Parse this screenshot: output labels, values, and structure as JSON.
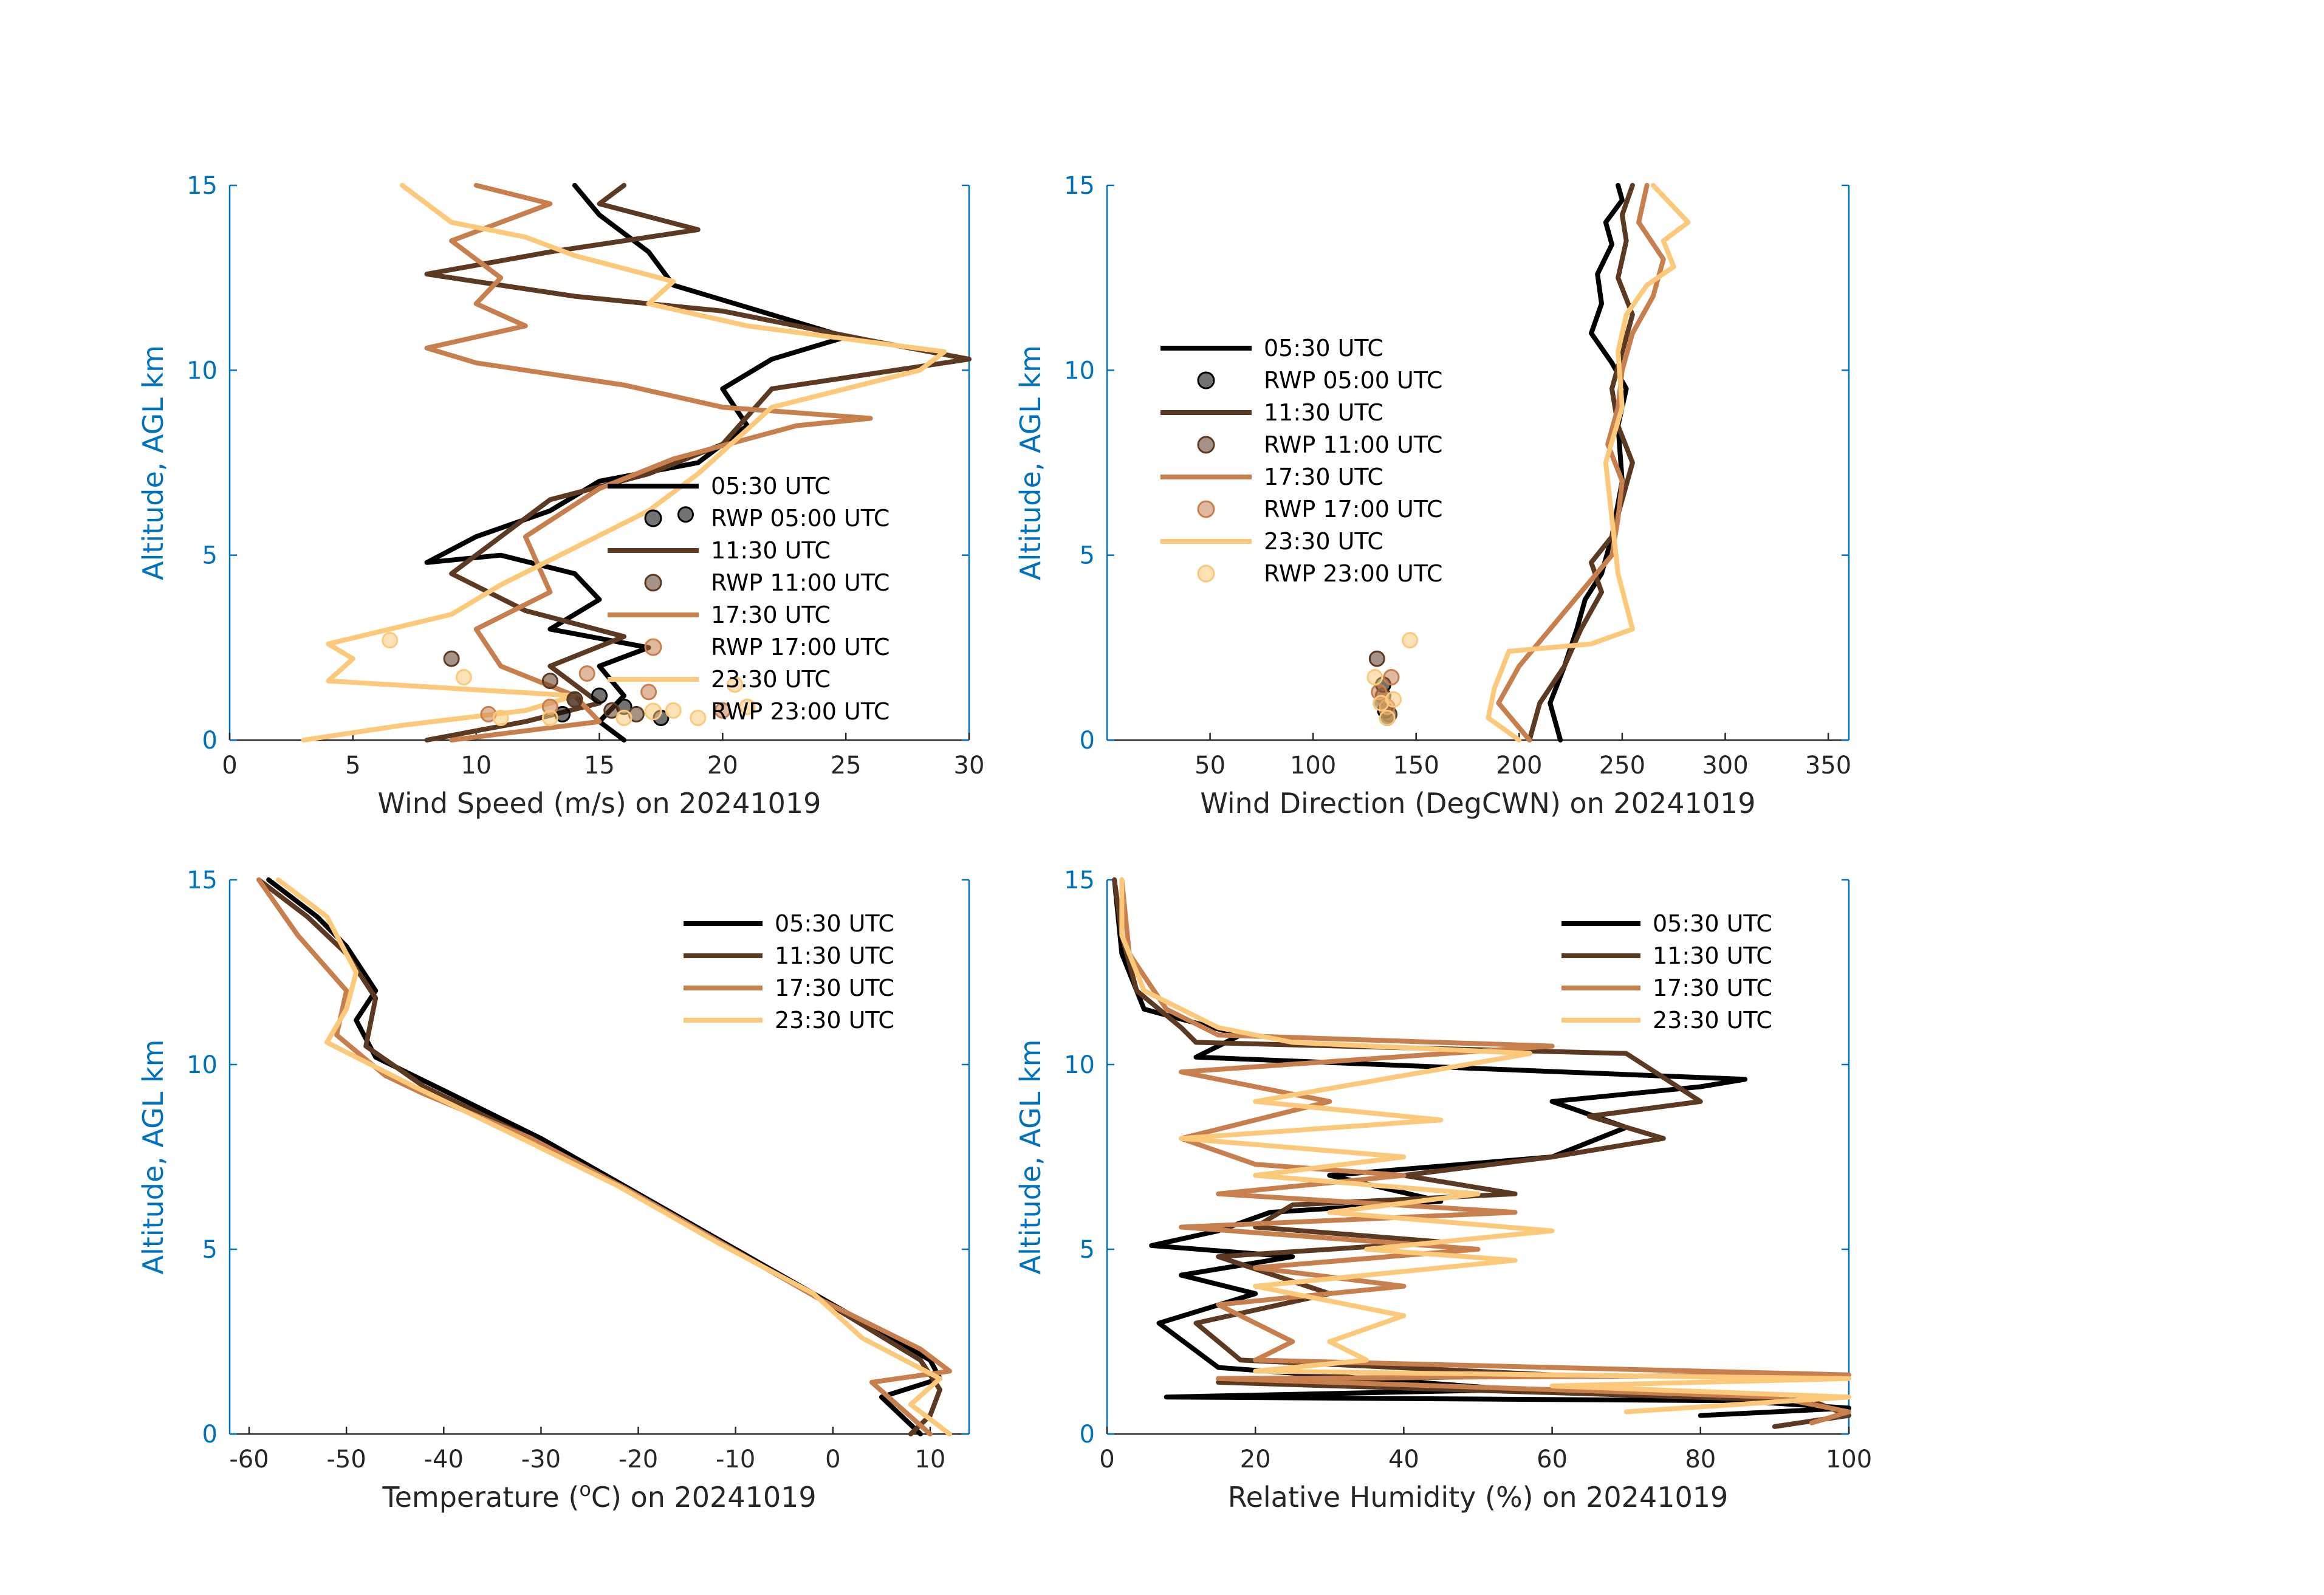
{
  "colors": {
    "axis_blue": "#0072BD",
    "axis_dark": "#262626",
    "t0530": "#000000",
    "t1130": "#5C3A21",
    "t1730": "#C87F4E",
    "t2330": "#FCC97B"
  },
  "times": [
    "05:30 UTC",
    "11:30 UTC",
    "17:30 UTC",
    "23:30 UTC"
  ],
  "rwp_labels": [
    "RWP 05:00 UTC",
    "RWP 11:00 UTC",
    "RWP 17:00 UTC",
    "RWP 23:00 UTC"
  ],
  "chart_data": [
    {
      "id": "wind_speed",
      "type": "line",
      "xlabel": "Wind Speed (m/s) on 20241019",
      "ylabel": "Altitude, AGL km",
      "xlim": [
        0,
        30
      ],
      "ylim": [
        0,
        15
      ],
      "xticks": [
        0,
        5,
        10,
        15,
        20,
        25,
        30
      ],
      "yticks": [
        0,
        5,
        10,
        15
      ],
      "legend": "bottom-right, inside, with RWP markers",
      "series": [
        {
          "name": "05:30 UTC",
          "x": [
            16,
            15,
            16,
            15,
            17,
            13,
            15,
            14,
            11,
            8,
            10,
            13,
            15,
            19,
            21,
            20,
            22,
            25,
            22,
            18,
            17,
            15,
            14
          ],
          "y": [
            0,
            0.5,
            1.2,
            2,
            2.5,
            3,
            3.8,
            4.5,
            5.0,
            4.8,
            5.5,
            6.2,
            7,
            7.5,
            8.5,
            9.5,
            10.3,
            10.9,
            11.5,
            12.3,
            13.2,
            14.2,
            15
          ]
        },
        {
          "name": "11:30 UTC",
          "x": [
            8,
            12,
            15,
            13,
            16,
            12,
            9,
            11,
            13,
            17,
            20,
            22,
            30,
            26,
            20,
            14,
            8,
            13,
            19,
            15,
            16
          ],
          "y": [
            0,
            0.5,
            1.0,
            2,
            2.8,
            3.5,
            4.5,
            5.5,
            6.5,
            7.2,
            8.0,
            9.5,
            10.3,
            10.8,
            11.6,
            12.0,
            12.6,
            13.2,
            13.8,
            14.5,
            15
          ]
        },
        {
          "name": "17:30 UTC",
          "x": [
            9,
            15,
            14,
            11,
            10,
            13,
            12,
            15,
            18,
            23,
            26,
            20,
            16,
            10,
            8,
            12,
            10,
            11,
            9,
            13,
            10
          ],
          "y": [
            0,
            0.5,
            1.2,
            2.0,
            3.0,
            4.0,
            5.5,
            6.8,
            7.6,
            8.5,
            8.7,
            9.0,
            9.6,
            10.2,
            10.6,
            11.2,
            11.8,
            12.5,
            13.5,
            14.5,
            15
          ]
        },
        {
          "name": "23:30 UTC",
          "x": [
            3,
            7,
            12,
            14,
            4,
            5,
            4,
            9,
            11,
            14,
            17,
            19,
            22,
            28,
            29,
            21,
            17,
            18,
            14,
            12,
            9,
            8,
            7
          ],
          "y": [
            0,
            0.4,
            0.8,
            1.2,
            1.6,
            2.2,
            2.6,
            3.4,
            4.2,
            5.2,
            6.2,
            7.2,
            9.0,
            10.0,
            10.5,
            11.2,
            11.8,
            12.4,
            13.1,
            13.6,
            14.0,
            14.5,
            15
          ]
        }
      ],
      "rwp": [
        {
          "name": "RWP 05:00 UTC",
          "x": [
            18.5,
            15,
            16,
            17.5,
            13.5,
            14
          ],
          "y": [
            6.1,
            1.2,
            0.9,
            0.6,
            0.7,
            1.1
          ]
        },
        {
          "name": "RWP 11:00 UTC",
          "x": [
            9,
            14,
            15.5,
            16.5,
            13
          ],
          "y": [
            2.2,
            1.1,
            0.8,
            0.7,
            1.6
          ]
        },
        {
          "name": "RWP 17:00 UTC",
          "x": [
            13,
            17,
            20,
            10.5,
            14.5
          ],
          "y": [
            0.9,
            1.3,
            0.8,
            0.7,
            1.8
          ]
        },
        {
          "name": "RWP 23:00 UTC",
          "x": [
            6.5,
            9.5,
            11,
            13,
            16,
            18,
            19,
            20.5,
            21
          ],
          "y": [
            2.7,
            1.7,
            0.6,
            0.6,
            0.6,
            0.8,
            0.6,
            1.5,
            0.9
          ]
        }
      ]
    },
    {
      "id": "wind_direction",
      "type": "line",
      "xlabel": "Wind Direction (DegCWN) on 20241019",
      "ylabel": "Altitude, AGL km",
      "xlim": [
        0,
        360
      ],
      "ylim": [
        0,
        15
      ],
      "xticks": [
        50,
        100,
        150,
        200,
        250,
        300,
        350
      ],
      "yticks": [
        0,
        5,
        10,
        15
      ],
      "legend": "upper-left, inside, with RWP markers",
      "series": [
        {
          "name": "05:30 UTC",
          "x": [
            220,
            215,
            222,
            228,
            232,
            240,
            245,
            250,
            248,
            252,
            245,
            235,
            240,
            238,
            245,
            242,
            250,
            248
          ],
          "y": [
            0,
            1,
            2,
            3,
            3.8,
            4.5,
            5.5,
            7.0,
            8.5,
            9.5,
            10.2,
            11.0,
            11.8,
            12.6,
            13.4,
            14.0,
            14.6,
            15
          ]
        },
        {
          "name": "11:30 UTC",
          "x": [
            205,
            210,
            222,
            230,
            240,
            235,
            245,
            250,
            255,
            248,
            245,
            250,
            255,
            248,
            252,
            250,
            255
          ],
          "y": [
            0,
            1,
            2,
            3,
            4,
            4.8,
            5.5,
            6.5,
            7.5,
            8.5,
            9.5,
            10.5,
            11.5,
            12.5,
            13.5,
            14.2,
            15
          ]
        },
        {
          "name": "17:30 UTC",
          "x": [
            205,
            190,
            200,
            215,
            230,
            245,
            248,
            250,
            243,
            248,
            250,
            255,
            265,
            270,
            258,
            262
          ],
          "y": [
            0,
            1,
            2,
            3,
            4,
            5,
            6,
            7,
            8,
            9,
            10,
            11,
            12,
            13,
            14,
            15
          ]
        },
        {
          "name": "23:30 UTC",
          "x": [
            200,
            185,
            188,
            195,
            235,
            255,
            248,
            245,
            242,
            250,
            248,
            252,
            262,
            275,
            270,
            282,
            265
          ],
          "y": [
            0,
            0.6,
            1.4,
            2.4,
            2.6,
            3.0,
            4.5,
            6.0,
            7.5,
            9.0,
            10.5,
            11.5,
            12.3,
            12.8,
            13.5,
            14.0,
            15
          ]
        }
      ],
      "rwp": [
        {
          "name": "RWP 05:00 UTC",
          "x": [
            133,
            135,
            134,
            136
          ],
          "y": [
            1.0,
            0.8,
            1.5,
            0.6
          ]
        },
        {
          "name": "RWP 11:00 UTC",
          "x": [
            131,
            134,
            137
          ],
          "y": [
            2.2,
            1.2,
            0.7
          ]
        },
        {
          "name": "RWP 17:00 UTC",
          "x": [
            132,
            136,
            138
          ],
          "y": [
            1.3,
            0.9,
            1.7
          ]
        },
        {
          "name": "RWP 23:00 UTC",
          "x": [
            130,
            133,
            136,
            139,
            147
          ],
          "y": [
            1.7,
            1.0,
            0.6,
            1.1,
            2.7
          ]
        }
      ]
    },
    {
      "id": "temperature",
      "type": "line",
      "xlabel_parts": [
        "Temperature (",
        "o",
        "C) on 20241019"
      ],
      "ylabel": "Altitude, AGL km",
      "xlim": [
        -62,
        14
      ],
      "ylim": [
        0,
        15
      ],
      "xticks": [
        -60,
        -50,
        -40,
        -30,
        -20,
        -10,
        0,
        10
      ],
      "yticks": [
        0,
        5,
        10,
        15
      ],
      "legend": "top-right, inside",
      "series": [
        {
          "name": "05:30 UTC",
          "x": [
            9,
            5,
            11,
            10,
            0,
            -10,
            -20,
            -30,
            -40,
            -47,
            -49,
            -47,
            -50,
            -53,
            -58
          ],
          "y": [
            0,
            1,
            1.5,
            2,
            3.5,
            5,
            6.5,
            8,
            9.3,
            10.2,
            11.2,
            12.0,
            13.2,
            14.0,
            15
          ]
        },
        {
          "name": "11:30 UTC",
          "x": [
            8,
            10,
            11,
            9,
            -1,
            -11,
            -21,
            -31,
            -42,
            -48,
            -47,
            -50,
            -54,
            -59
          ],
          "y": [
            0,
            0.5,
            1.2,
            2,
            3.6,
            5.1,
            6.6,
            8.0,
            9.4,
            10.5,
            11.8,
            13.0,
            14.0,
            15
          ]
        },
        {
          "name": "17:30 UTC",
          "x": [
            10,
            4,
            12,
            9,
            -1,
            -11,
            -21,
            -31,
            -42,
            -46,
            -51,
            -50,
            -55,
            -59
          ],
          "y": [
            0,
            1.4,
            1.7,
            2.3,
            3.6,
            5.1,
            6.6,
            8.0,
            9.2,
            9.7,
            10.8,
            12.0,
            13.5,
            15
          ]
        },
        {
          "name": "23:30 UTC",
          "x": [
            12,
            8,
            11,
            3,
            -2,
            -12,
            -22,
            -32,
            -43,
            -52,
            -50,
            -49,
            -52,
            -57
          ],
          "y": [
            0,
            0.8,
            1.5,
            2.6,
            3.8,
            5.2,
            6.7,
            8.0,
            9.4,
            10.6,
            11.5,
            12.5,
            14.0,
            15
          ]
        }
      ]
    },
    {
      "id": "relative_humidity",
      "type": "line",
      "xlabel": "Relative Humidity (%) on 20241019",
      "ylabel": "Altitude, AGL km",
      "xlim": [
        0,
        100
      ],
      "ylim": [
        0,
        15
      ],
      "xticks": [
        0,
        20,
        40,
        60,
        80,
        100
      ],
      "yticks": [
        0,
        5,
        10,
        15
      ],
      "legend": "top-right, inside",
      "series": [
        {
          "name": "05:30 UTC",
          "x": [
            80,
            100,
            85,
            8,
            55,
            15,
            7,
            20,
            10,
            25,
            6,
            15,
            22,
            45,
            30,
            60,
            70,
            60,
            80,
            86,
            12,
            18,
            5,
            2,
            1
          ],
          "y": [
            0.5,
            0.7,
            0.9,
            1.0,
            1.2,
            1.8,
            3.0,
            3.8,
            4.3,
            4.8,
            5.1,
            5.5,
            6.0,
            6.3,
            7.0,
            7.5,
            8.3,
            9.0,
            9.4,
            9.6,
            10.2,
            10.8,
            11.5,
            13,
            15
          ]
        },
        {
          "name": "11:30 UTC",
          "x": [
            90,
            100,
            95,
            15,
            60,
            18,
            12,
            30,
            15,
            45,
            20,
            25,
            55,
            40,
            60,
            75,
            65,
            80,
            70,
            12,
            10,
            4,
            2,
            1
          ],
          "y": [
            0.2,
            0.5,
            0.9,
            1.4,
            1.6,
            2.0,
            3.0,
            3.8,
            4.8,
            5.2,
            5.6,
            6.2,
            6.5,
            7.0,
            7.5,
            8.0,
            8.6,
            9.0,
            10.3,
            10.6,
            11.0,
            12,
            13.5,
            15
          ]
        },
        {
          "name": "17:30 UTC",
          "x": [
            95,
            100,
            90,
            15,
            100,
            20,
            25,
            15,
            40,
            20,
            50,
            10,
            55,
            15,
            40,
            20,
            10,
            30,
            10,
            60,
            15,
            8,
            3,
            2
          ],
          "y": [
            0.3,
            0.6,
            1.0,
            1.5,
            1.6,
            2.0,
            2.5,
            3.5,
            4.0,
            4.5,
            5.0,
            5.6,
            6.0,
            6.5,
            7.0,
            7.3,
            8.0,
            9.0,
            9.8,
            10.5,
            10.8,
            11.5,
            13,
            15
          ]
        },
        {
          "name": "23:30 UTC",
          "x": [
            70,
            100,
            60,
            100,
            20,
            35,
            30,
            40,
            20,
            55,
            35,
            60,
            30,
            50,
            20,
            40,
            10,
            45,
            20,
            57,
            25,
            15,
            5,
            2,
            2
          ],
          "y": [
            0.6,
            1.0,
            1.3,
            1.5,
            1.7,
            2.0,
            2.5,
            3.2,
            4.0,
            4.7,
            5.0,
            5.5,
            6.0,
            6.5,
            7.0,
            7.5,
            8.0,
            8.5,
            9.0,
            10.3,
            10.6,
            11.0,
            12,
            13.5,
            15
          ]
        }
      ]
    }
  ]
}
